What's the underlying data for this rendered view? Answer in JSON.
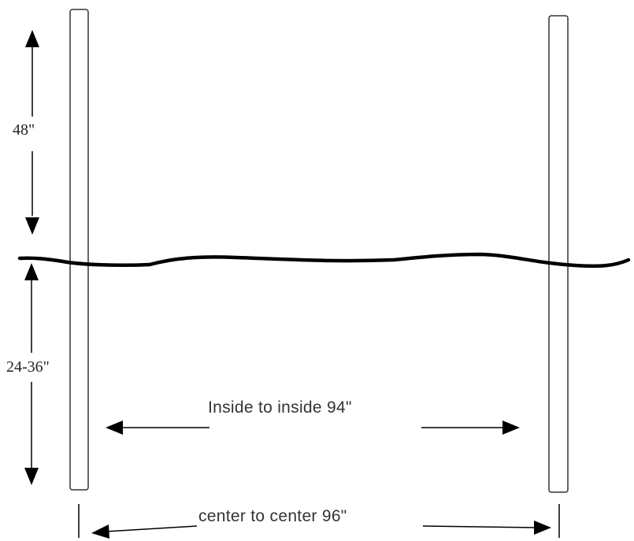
{
  "labels": {
    "above_ground": "48\"",
    "below_ground": "24-36\"",
    "inside_to_inside": "Inside to inside 94\"",
    "center_to_center": "center to center 96\""
  },
  "colors": {
    "ink": "#000000",
    "post_outline": "#333333"
  }
}
